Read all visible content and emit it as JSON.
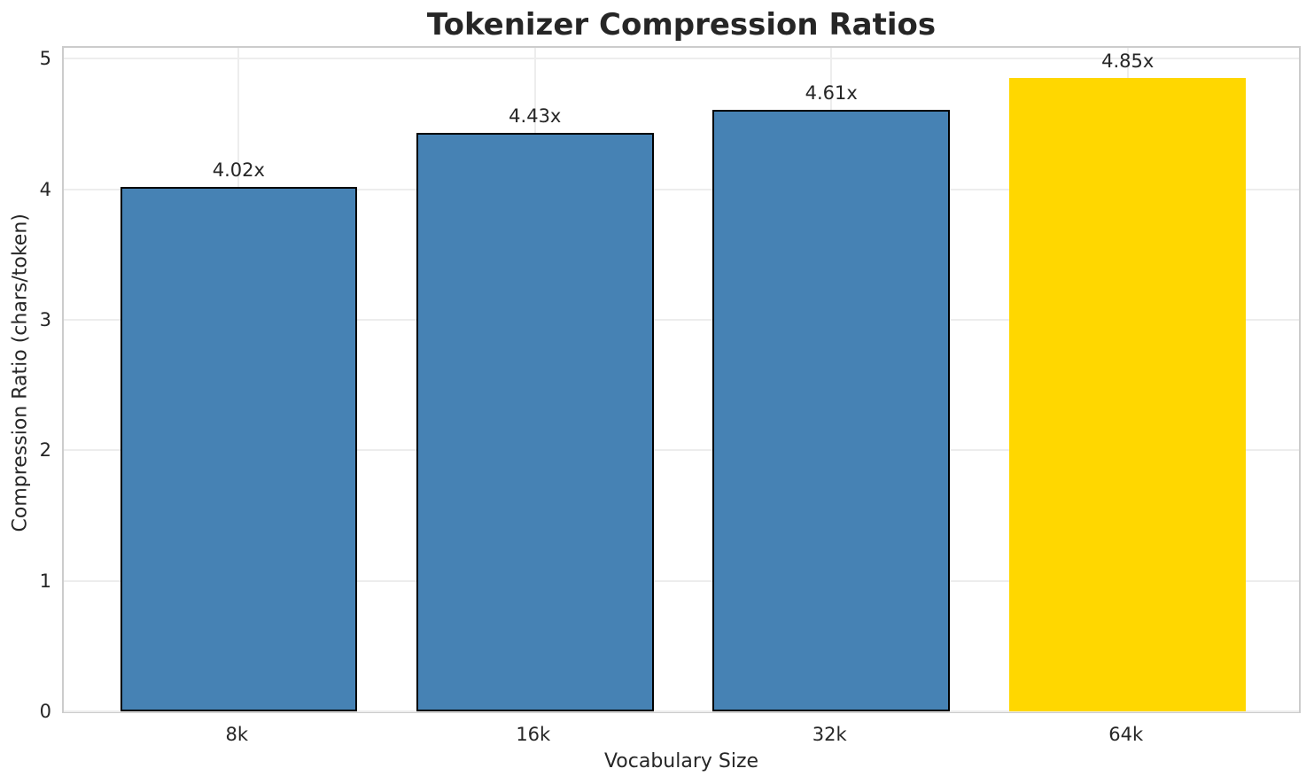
{
  "chart_data": {
    "type": "bar",
    "title": "Tokenizer Compression Ratios",
    "xlabel": "Vocabulary Size",
    "ylabel": "Compression Ratio (chars/token)",
    "categories": [
      "8k",
      "16k",
      "32k",
      "64k"
    ],
    "values": [
      4.02,
      4.43,
      4.61,
      4.85
    ],
    "bar_labels": [
      "4.02x",
      "4.43x",
      "4.61x",
      "4.85x"
    ],
    "bar_colors": [
      "#4682B4",
      "#4682B4",
      "#4682B4",
      "#FFD700"
    ],
    "bar_edge_colors": [
      "#000000",
      "#000000",
      "#000000",
      "none"
    ],
    "highlight_index": 3,
    "ylim": [
      0,
      5.11
    ],
    "yticks": [
      0,
      1,
      2,
      3,
      4,
      5
    ],
    "grid": true,
    "legend": "none",
    "colors": {
      "bar_default": "#4682B4",
      "bar_highlight": "#FFD700",
      "grid": "#ededed",
      "spine": "#cccccc",
      "text": "#262626"
    }
  }
}
